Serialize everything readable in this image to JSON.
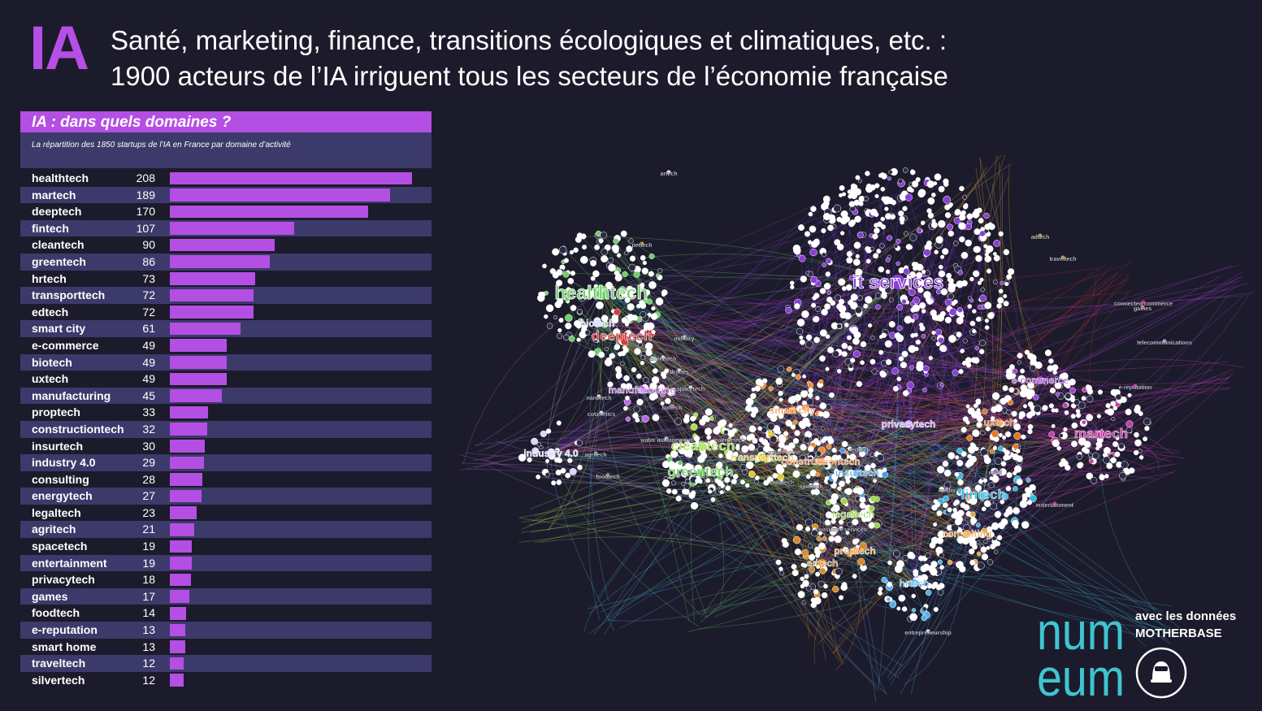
{
  "header": {
    "logo_text": "IA",
    "headline_line1": "Santé, marketing, finance, transitions écologiques et climatiques, etc. :",
    "headline_line2": "1900 acteurs de l’IA irriguent tous les secteurs de l’économie française"
  },
  "colors": {
    "background": "#1c1b2b",
    "accent": "#b44fe3",
    "band": "#3c3a6a",
    "numeum": "#3fc4d1"
  },
  "chart_data": {
    "type": "bar",
    "orientation": "horizontal",
    "title": "IA : dans quels domaines ?",
    "subtitle": "La répartition des 1850 startups de l’IA en France par domaine d’activité",
    "categories": [
      "healthtech",
      "martech",
      "deeptech",
      "fintech",
      "cleantech",
      "greentech",
      "hrtech",
      "transporttech",
      "edtech",
      "smart city",
      "e-commerce",
      "biotech",
      "uxtech",
      "manufacturing",
      "proptech",
      "constructiontech",
      "insurtech",
      "industry 4.0",
      "consulting",
      "energytech",
      "legaltech",
      "agritech",
      "spacetech",
      "entertainment",
      "privacytech",
      "games",
      "foodtech",
      "e-reputation",
      "smart home",
      "traveltech",
      "silvertech"
    ],
    "values": [
      208,
      189,
      170,
      107,
      90,
      86,
      73,
      72,
      72,
      61,
      49,
      49,
      49,
      45,
      33,
      32,
      30,
      29,
      28,
      27,
      23,
      21,
      19,
      19,
      18,
      17,
      14,
      13,
      13,
      12,
      12
    ],
    "xlim": [
      0,
      208
    ],
    "grid": false,
    "legend": "none"
  },
  "network": {
    "labels": [
      {
        "text": "it services",
        "size": "large"
      },
      {
        "text": "healthtech",
        "size": "large"
      },
      {
        "text": "deeptech",
        "size": "medium"
      },
      {
        "text": "biotech",
        "size": "small"
      },
      {
        "text": "martech",
        "size": "medium"
      },
      {
        "text": "fintech",
        "size": "medium"
      },
      {
        "text": "smart city",
        "size": "small"
      },
      {
        "text": "uxtech",
        "size": "small"
      },
      {
        "text": "e-commerce",
        "size": "small"
      },
      {
        "text": "cleantech",
        "size": "medium"
      },
      {
        "text": "greentech",
        "size": "medium"
      },
      {
        "text": "transporttech",
        "size": "small"
      },
      {
        "text": "constructiontech",
        "size": "small"
      },
      {
        "text": "manufacturing",
        "size": "small"
      },
      {
        "text": "industry 4.0",
        "size": "small"
      },
      {
        "text": "insurtech",
        "size": "small"
      },
      {
        "text": "privacytech",
        "size": "small"
      },
      {
        "text": "consulting",
        "size": "small"
      },
      {
        "text": "legaltech",
        "size": "small"
      },
      {
        "text": "proptech",
        "size": "small"
      },
      {
        "text": "edtech",
        "size": "small"
      },
      {
        "text": "hrtech",
        "size": "small"
      },
      {
        "text": "agritech",
        "size": "tiny"
      },
      {
        "text": "foodtech",
        "size": "tiny"
      },
      {
        "text": "spacetech",
        "size": "tiny"
      },
      {
        "text": "silvertech",
        "size": "tiny"
      },
      {
        "text": "energytech",
        "size": "tiny"
      },
      {
        "text": "smart home",
        "size": "tiny"
      },
      {
        "text": "regtech",
        "size": "tiny"
      },
      {
        "text": "retail",
        "size": "tiny"
      },
      {
        "text": "media",
        "size": "tiny"
      },
      {
        "text": "entertainment",
        "size": "tiny"
      },
      {
        "text": "games",
        "size": "tiny"
      },
      {
        "text": "telecommunications",
        "size": "tiny"
      },
      {
        "text": "e-reputation",
        "size": "tiny"
      },
      {
        "text": "traveltech",
        "size": "tiny"
      },
      {
        "text": "adtech",
        "size": "tiny"
      },
      {
        "text": "military",
        "size": "tiny"
      },
      {
        "text": "drones",
        "size": "tiny"
      },
      {
        "text": "kidtech",
        "size": "tiny"
      },
      {
        "text": "nanotech",
        "size": "tiny"
      },
      {
        "text": "cosmetics",
        "size": "tiny"
      },
      {
        "text": "sportech",
        "size": "tiny"
      },
      {
        "text": "civictech",
        "size": "tiny"
      },
      {
        "text": "water management",
        "size": "tiny"
      },
      {
        "text": "consumer services",
        "size": "tiny"
      },
      {
        "text": "entrepreneurship",
        "size": "tiny"
      },
      {
        "text": "pettech",
        "size": "tiny"
      },
      {
        "text": "connected commerce",
        "size": "tiny"
      },
      {
        "text": "artech",
        "size": "tiny"
      }
    ]
  },
  "branding": {
    "numeum_line1": "num",
    "numeum_line2": "eum",
    "credit_line1": "avec les données",
    "credit_line2": "MOTHERBASE"
  }
}
